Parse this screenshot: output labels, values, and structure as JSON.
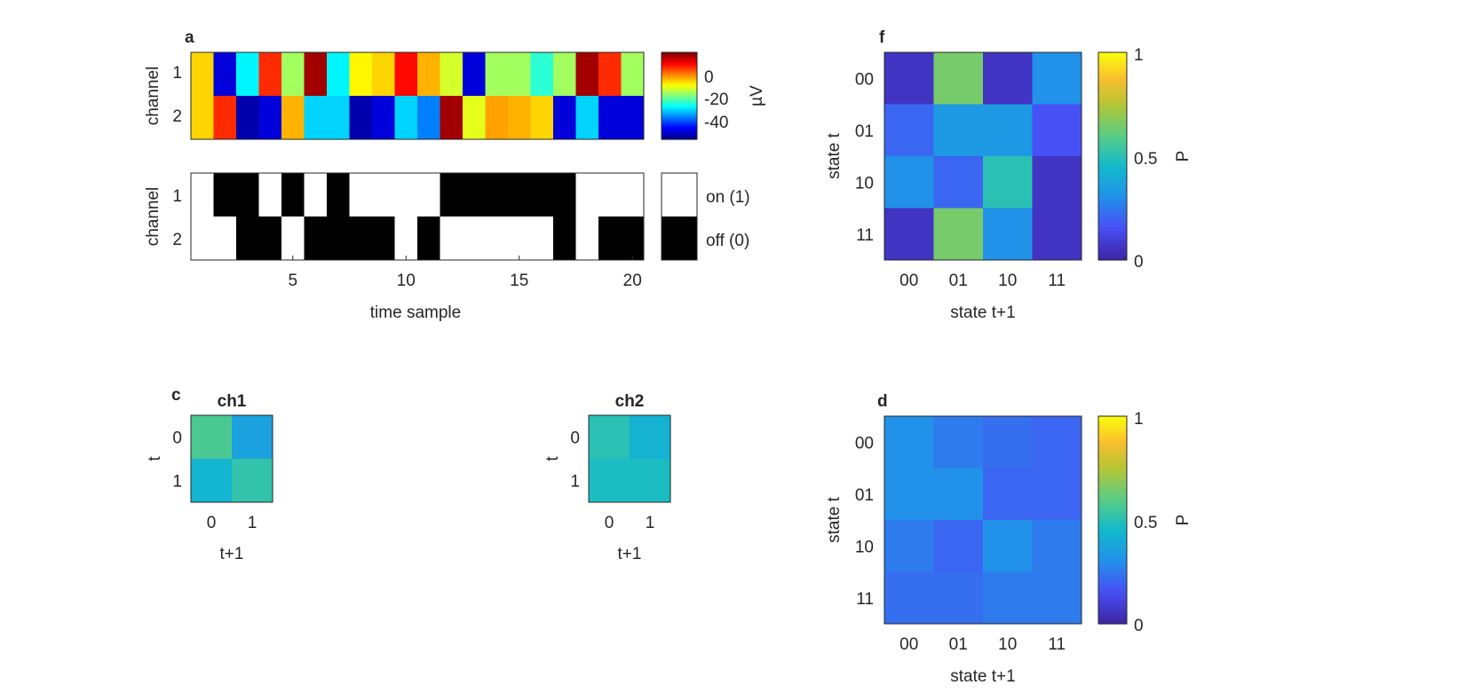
{
  "chart_data": [
    {
      "panel": "a",
      "type": "heatmap",
      "ylabel": "channel",
      "yticklabels": [
        "1",
        "2"
      ],
      "colorbar": {
        "ticks": [
          0,
          -20,
          -40
        ],
        "label": "µV",
        "clim": [
          -50,
          10
        ]
      },
      "values": [
        [
          -10,
          -45,
          -28,
          0,
          -18,
          8,
          -28,
          -12,
          -10,
          2,
          -8,
          -15,
          -45,
          -18,
          -18,
          -25,
          -18,
          8,
          0,
          -18
        ],
        [
          -10,
          0,
          -48,
          -45,
          -8,
          -30,
          -30,
          -48,
          -45,
          -30,
          -35,
          8,
          -14,
          -7,
          -8,
          -10,
          -45,
          -30,
          -45,
          -45
        ]
      ]
    },
    {
      "panel": "a2",
      "type": "heatmap",
      "xlabel": "time sample",
      "ylabel": "channel",
      "xticks": [
        5,
        10,
        15,
        20
      ],
      "yticklabels": [
        "1",
        "2"
      ],
      "legend": [
        "on (1)",
        "off (0)"
      ],
      "values": [
        [
          1,
          0,
          0,
          1,
          0,
          1,
          0,
          1,
          1,
          1,
          1,
          0,
          0,
          0,
          0,
          0,
          0,
          1,
          1,
          1
        ],
        [
          1,
          1,
          0,
          0,
          1,
          0,
          0,
          0,
          0,
          1,
          0,
          1,
          1,
          1,
          1,
          1,
          0,
          1,
          0,
          0
        ]
      ]
    },
    {
      "panel": "f",
      "type": "heatmap",
      "xlabel": "state t+1",
      "ylabel": "state t",
      "xticklabels": [
        "00",
        "01",
        "10",
        "11"
      ],
      "yticklabels": [
        "00",
        "01",
        "10",
        "11"
      ],
      "colorbar": {
        "ticks": [
          0,
          0.5,
          1
        ],
        "label": "P",
        "clim": [
          0,
          1
        ]
      },
      "values": [
        [
          0.05,
          0.65,
          0.05,
          0.3
        ],
        [
          0.2,
          0.33,
          0.33,
          0.15
        ],
        [
          0.3,
          0.2,
          0.5,
          0.05
        ],
        [
          0.05,
          0.65,
          0.3,
          0.05
        ]
      ]
    },
    {
      "panel": "c",
      "type": "heatmap",
      "title": "ch1",
      "xlabel": "t+1",
      "ylabel": "t",
      "xticklabels": [
        "0",
        "1"
      ],
      "yticklabels": [
        "0",
        "1"
      ],
      "values": [
        [
          0.57,
          0.36
        ],
        [
          0.43,
          0.52
        ]
      ]
    },
    {
      "panel": "ch2",
      "type": "heatmap",
      "title": "ch2",
      "xlabel": "t+1",
      "ylabel": "t",
      "xticklabels": [
        "0",
        "1"
      ],
      "yticklabels": [
        "0",
        "1"
      ],
      "values": [
        [
          0.5,
          0.42
        ],
        [
          0.47,
          0.47
        ]
      ]
    },
    {
      "panel": "d",
      "type": "heatmap",
      "xlabel": "state t+1",
      "ylabel": "state t",
      "xticklabels": [
        "00",
        "01",
        "10",
        "11"
      ],
      "yticklabels": [
        "00",
        "01",
        "10",
        "11"
      ],
      "colorbar": {
        "ticks": [
          0,
          0.5,
          1
        ],
        "label": "P",
        "clim": [
          0,
          1
        ]
      },
      "values": [
        [
          0.3,
          0.25,
          0.22,
          0.2
        ],
        [
          0.3,
          0.3,
          0.2,
          0.2
        ],
        [
          0.25,
          0.2,
          0.3,
          0.25
        ],
        [
          0.22,
          0.22,
          0.25,
          0.25
        ]
      ]
    }
  ],
  "colors": {
    "axis": "#262626",
    "on": "#ffffff",
    "off": "#000000"
  },
  "colormaps": {
    "jet": "jet",
    "parula": "parula"
  }
}
